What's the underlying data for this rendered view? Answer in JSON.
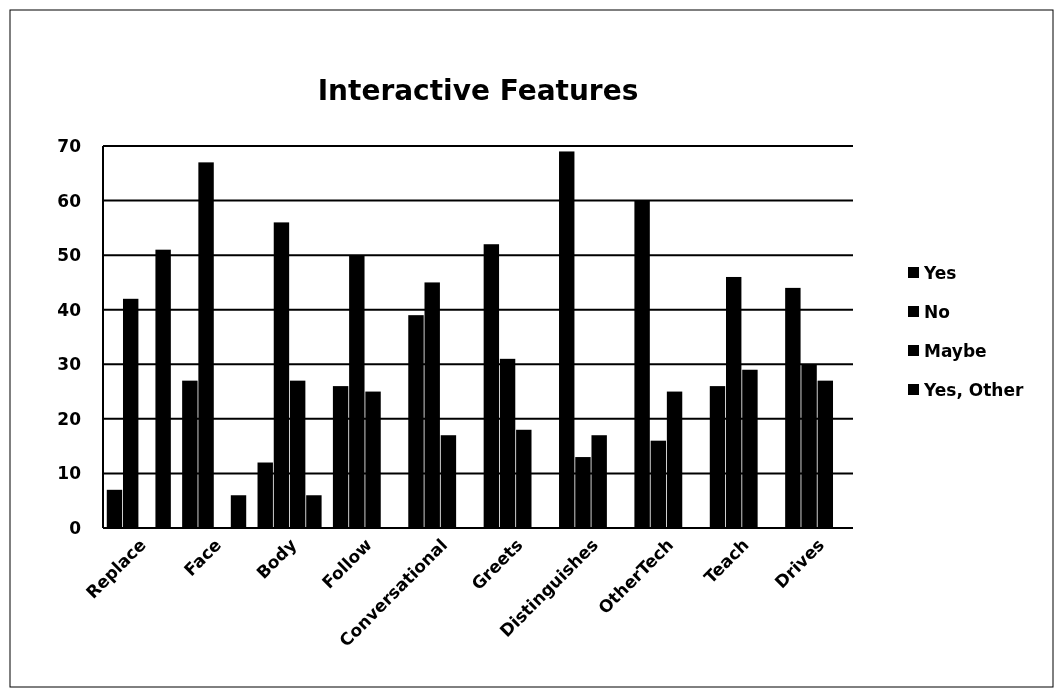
{
  "chart_data": {
    "type": "bar",
    "title": "Interactive Features",
    "categories": [
      "Replace",
      "Face",
      "Body",
      "Follow",
      "Conversational",
      "Greets",
      "Distinguishes",
      "OtherTech",
      "Teach",
      "Drives"
    ],
    "series": [
      {
        "name": "Yes",
        "color": "#000000",
        "values": [
          7,
          27,
          12,
          26,
          39,
          52,
          69,
          60,
          26,
          44
        ]
      },
      {
        "name": "No",
        "color": "#000000",
        "values": [
          42,
          67,
          56,
          50,
          45,
          31,
          13,
          16,
          46,
          30
        ]
      },
      {
        "name": "Maybe",
        "color": "#000000",
        "values": [
          0,
          0,
          27,
          25,
          17,
          18,
          17,
          25,
          29,
          27
        ]
      },
      {
        "name": "Yes, Other",
        "color": "#000000",
        "values": [
          51,
          6,
          6,
          0,
          0,
          0,
          0,
          0,
          0,
          0
        ]
      }
    ],
    "ylim": [
      0,
      70
    ],
    "yticks": [
      0,
      10,
      20,
      30,
      40,
      50,
      60,
      70
    ],
    "grid": "y",
    "legend": "right"
  }
}
